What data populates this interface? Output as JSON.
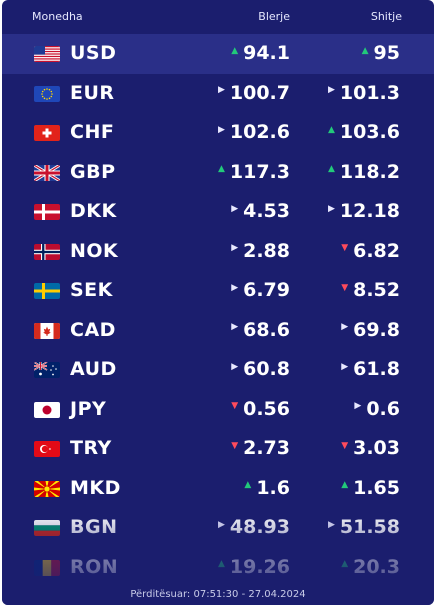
{
  "header": {
    "currency": "Monedha",
    "buy": "Blerje",
    "sell": "Shitje"
  },
  "rates": [
    {
      "code": "USD",
      "flag": "us-flag-icon",
      "buy": "94.1",
      "buy_trend": "up",
      "sell": "95",
      "sell_trend": "up"
    },
    {
      "code": "EUR",
      "flag": "eu-flag-icon",
      "buy": "100.7",
      "buy_trend": "flat",
      "sell": "101.3",
      "sell_trend": "flat"
    },
    {
      "code": "CHF",
      "flag": "ch-flag-icon",
      "buy": "102.6",
      "buy_trend": "flat",
      "sell": "103.6",
      "sell_trend": "up"
    },
    {
      "code": "GBP",
      "flag": "gb-flag-icon",
      "buy": "117.3",
      "buy_trend": "up",
      "sell": "118.2",
      "sell_trend": "up"
    },
    {
      "code": "DKK",
      "flag": "dk-flag-icon",
      "buy": "4.53",
      "buy_trend": "flat",
      "sell": "12.18",
      "sell_trend": "flat"
    },
    {
      "code": "NOK",
      "flag": "no-flag-icon",
      "buy": "2.88",
      "buy_trend": "flat",
      "sell": "6.82",
      "sell_trend": "down"
    },
    {
      "code": "SEK",
      "flag": "se-flag-icon",
      "buy": "6.79",
      "buy_trend": "flat",
      "sell": "8.52",
      "sell_trend": "down"
    },
    {
      "code": "CAD",
      "flag": "ca-flag-icon",
      "buy": "68.6",
      "buy_trend": "flat",
      "sell": "69.8",
      "sell_trend": "flat"
    },
    {
      "code": "AUD",
      "flag": "au-flag-icon",
      "buy": "60.8",
      "buy_trend": "flat",
      "sell": "61.8",
      "sell_trend": "flat"
    },
    {
      "code": "JPY",
      "flag": "jp-flag-icon",
      "buy": "0.56",
      "buy_trend": "down",
      "sell": "0.6",
      "sell_trend": "flat"
    },
    {
      "code": "TRY",
      "flag": "tr-flag-icon",
      "buy": "2.73",
      "buy_trend": "down",
      "sell": "3.03",
      "sell_trend": "down"
    },
    {
      "code": "MKD",
      "flag": "mk-flag-icon",
      "buy": "1.6",
      "buy_trend": "up",
      "sell": "1.65",
      "sell_trend": "up"
    },
    {
      "code": "BGN",
      "flag": "bg-flag-icon",
      "buy": "48.93",
      "buy_trend": "flat",
      "sell": "51.58",
      "sell_trend": "flat"
    },
    {
      "code": "RON",
      "flag": "ro-flag-icon",
      "buy": "19.26",
      "buy_trend": "up",
      "sell": "20.3",
      "sell_trend": "up"
    }
  ],
  "footer": {
    "updated": "Përditësuar: 07:51:30 - 27.04.2024"
  },
  "colors": {
    "panel": "#1b1e6e",
    "highlight": "#2a2f88",
    "up": "#22c97a",
    "down": "#ff4b5c"
  }
}
